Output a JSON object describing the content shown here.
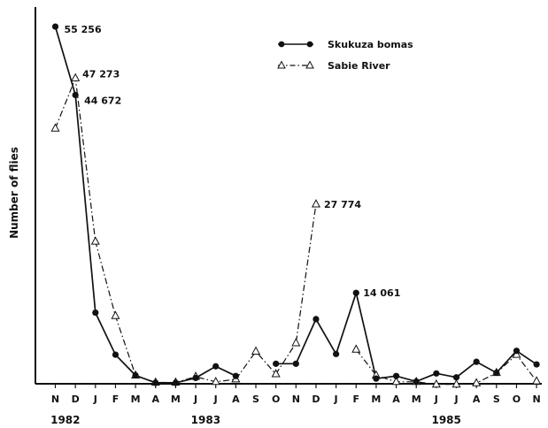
{
  "chart_data": {
    "type": "line",
    "ylabel": "Number of flies",
    "xlabel": "",
    "ylim": [
      0,
      58000
    ],
    "x": [
      "N",
      "D",
      "J",
      "F",
      "M",
      "A",
      "M",
      "J",
      "J",
      "A",
      "S",
      "O",
      "N",
      "D",
      "J",
      "F",
      "M",
      "A",
      "M",
      "J",
      "J",
      "A",
      "S",
      "O",
      "N"
    ],
    "year_labels": [
      {
        "label": "1982",
        "index": 0.5
      },
      {
        "label": "1983",
        "index": 7.5
      },
      {
        "label": "1985",
        "index": 19.5
      }
    ],
    "series": [
      {
        "name": "Skukuza bomas",
        "style": "solid",
        "marker": "filled-circle",
        "color": "#111111",
        "values": [
          55256,
          44672,
          11000,
          4500,
          1300,
          150,
          150,
          900,
          2700,
          1200,
          null,
          3100,
          3100,
          10000,
          4600,
          14061,
          800,
          1200,
          350,
          1600,
          1000,
          3400,
          1700,
          5100,
          3000
        ]
      },
      {
        "name": "Sabie River",
        "style": "dash-dot",
        "marker": "open-triangle",
        "color": "#111111",
        "values": [
          39500,
          47273,
          22000,
          10500,
          1300,
          200,
          200,
          1100,
          300,
          700,
          5000,
          1500,
          6300,
          27774,
          null,
          5300,
          1300,
          300,
          300,
          -100,
          -100,
          100,
          1700,
          4500,
          400
        ]
      }
    ],
    "data_labels": [
      {
        "text": "55 256",
        "series": 0,
        "index": 0
      },
      {
        "text": "47 273",
        "series": 1,
        "index": 1
      },
      {
        "text": "44 672",
        "series": 0,
        "index": 1
      },
      {
        "text": "27 774",
        "series": 1,
        "index": 13
      },
      {
        "text": "14 061",
        "series": 0,
        "index": 15
      }
    ],
    "legend_position": "top-right",
    "grid": false
  }
}
